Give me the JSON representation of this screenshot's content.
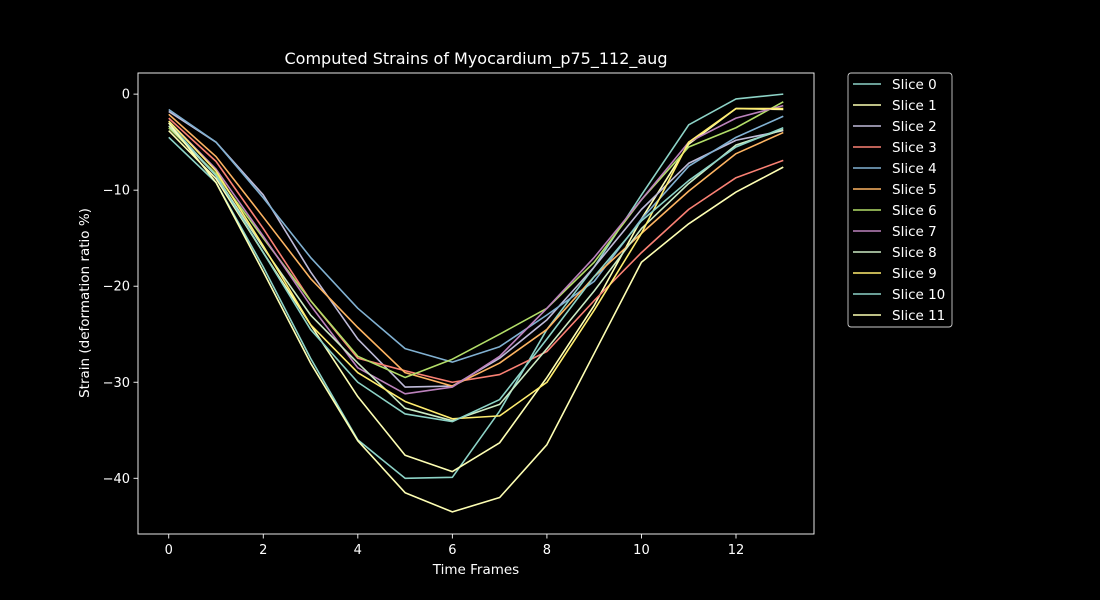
{
  "chart_data": {
    "type": "line",
    "title": "Computed Strains of Myocardium_p75_112_aug",
    "xlabel": "Time Frames",
    "ylabel": "Strain (deformation ratio %)",
    "xlim": [
      -0.65,
      13.65
    ],
    "ylim": [
      -45.8,
      2.2
    ],
    "xticks": [
      0,
      2,
      4,
      6,
      8,
      10,
      12
    ],
    "yticks": [
      0,
      -10,
      -20,
      -30,
      -40
    ],
    "ytick_labels": [
      "0",
      "−10",
      "−20",
      "−30",
      "−40"
    ],
    "grid": false,
    "legend_position": "outside-top-right",
    "x": [
      0,
      1,
      2,
      3,
      4,
      5,
      6,
      7,
      8,
      9,
      10,
      11,
      12,
      13
    ],
    "series": [
      {
        "name": "Slice 0",
        "color": "#8dd3c7",
        "values": [
          -4.5,
          -9.2,
          -18.0,
          -27.5,
          -36.0,
          -40.0,
          -39.9,
          -33.0,
          -24.5,
          -18.0,
          -10.5,
          -3.2,
          -0.5,
          0.0
        ]
      },
      {
        "name": "Slice 1",
        "color": "#feffb3",
        "values": [
          -3.8,
          -8.8,
          -16.5,
          -24.0,
          -31.5,
          -37.6,
          -39.3,
          -36.3,
          -29.5,
          -22.0,
          -13.0,
          -5.2,
          -1.5,
          -1.6
        ]
      },
      {
        "name": "Slice 2",
        "color": "#bfbbd9",
        "values": [
          -1.8,
          -5.0,
          -10.5,
          -18.5,
          -25.5,
          -30.5,
          -30.4,
          -27.5,
          -23.5,
          -18.0,
          -12.0,
          -7.2,
          -4.8,
          -3.8
        ]
      },
      {
        "name": "Slice 3",
        "color": "#fa8174",
        "values": [
          -2.5,
          -7.0,
          -14.0,
          -21.5,
          -27.5,
          -28.8,
          -30.0,
          -29.2,
          -26.8,
          -21.5,
          -16.5,
          -12.0,
          -8.7,
          -6.9
        ]
      },
      {
        "name": "Slice 4",
        "color": "#81b1d2",
        "values": [
          -1.6,
          -5.0,
          -10.8,
          -17.0,
          -22.3,
          -26.5,
          -27.9,
          -26.3,
          -23.0,
          -19.5,
          -13.0,
          -7.5,
          -4.5,
          -2.3
        ]
      },
      {
        "name": "Slice 5",
        "color": "#fdb462",
        "values": [
          -2.1,
          -6.5,
          -12.8,
          -19.2,
          -24.3,
          -29.0,
          -30.4,
          -28.0,
          -24.5,
          -19.0,
          -14.5,
          -10.1,
          -6.2,
          -4.0
        ]
      },
      {
        "name": "Slice 6",
        "color": "#b3de69",
        "values": [
          -3.5,
          -8.3,
          -15.0,
          -21.5,
          -27.3,
          -29.5,
          -27.6,
          -25.0,
          -22.3,
          -17.5,
          -11.0,
          -5.5,
          -3.5,
          -0.8
        ]
      },
      {
        "name": "Slice 7",
        "color": "#bc82bd",
        "values": [
          -2.8,
          -7.8,
          -14.8,
          -22.0,
          -28.5,
          -31.2,
          -30.5,
          -27.3,
          -22.3,
          -17.0,
          -11.0,
          -5.0,
          -2.5,
          -1.2
        ]
      },
      {
        "name": "Slice 8",
        "color": "#ccebc4",
        "values": [
          -3.3,
          -8.5,
          -16.0,
          -23.0,
          -28.0,
          -32.7,
          -34.0,
          -32.3,
          -26.5,
          -20.5,
          -14.0,
          -9.3,
          -5.3,
          -3.7
        ]
      },
      {
        "name": "Slice 9",
        "color": "#ffed6f",
        "values": [
          -2.8,
          -8.0,
          -15.8,
          -24.0,
          -29.0,
          -32.0,
          -33.8,
          -33.5,
          -30.0,
          -22.5,
          -14.5,
          -5.0,
          -1.5,
          -1.5
        ]
      },
      {
        "name": "Slice 10",
        "color": "#8dd3c7",
        "values": [
          -3.0,
          -8.5,
          -16.5,
          -24.5,
          -30.0,
          -33.3,
          -34.1,
          -31.8,
          -25.5,
          -19.0,
          -13.2,
          -9.0,
          -5.5,
          -3.5
        ]
      },
      {
        "name": "Slice 11",
        "color": "#feffb3",
        "values": [
          -3.0,
          -9.2,
          -18.5,
          -28.0,
          -36.1,
          -41.5,
          -43.5,
          -42.0,
          -36.5,
          -27.0,
          -17.5,
          -13.5,
          -10.2,
          -7.6
        ]
      }
    ]
  }
}
